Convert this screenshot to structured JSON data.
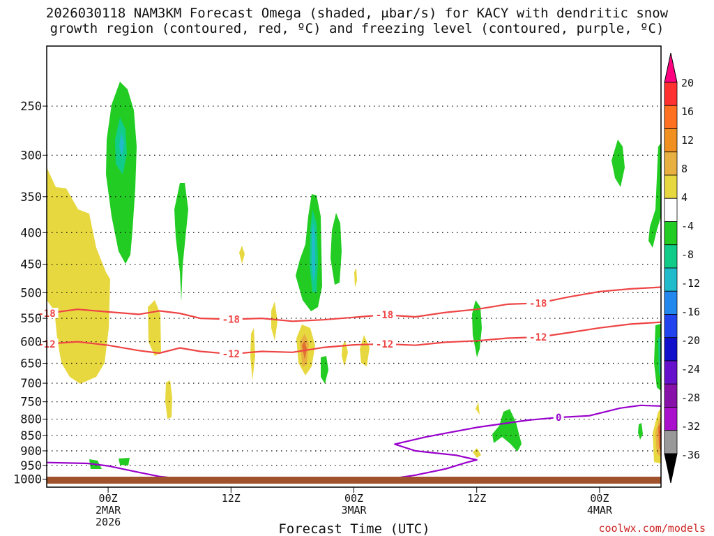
{
  "title_line1": "2026030118 NAM3KM Forecast Omega (shaded, μbar/s) for KACY with dendritic snow",
  "title_line2": "growth region (contoured, red, ºC) and freezing level (contoured, purple, ºC)",
  "credit": "coolwx.com/models",
  "colors": {
    "frame": "#000000",
    "temp_contour": "#ee4444",
    "freezing_contour": "#9900cc",
    "ground": "#a0522d",
    "rising_light": "#22cc22",
    "rising_mid": "#11cc88",
    "rising_strong": "#22bbcc",
    "sinking_light": "#e8d840",
    "sinking_mid": "#e8b040",
    "sinking_strong": "#e07030"
  },
  "chart_data": {
    "type": "heatmap",
    "title": "2026030118 NAM3KM Forecast Omega (shaded, μbar/s) for KACY with dendritic snow growth region (contoured, red, ºC) and freezing level (contoured, purple, ºC)",
    "xlabel": "Forecast Time (UTC)",
    "ylabel": "",
    "y_scale": "log-pressure",
    "y_ticks": [
      250,
      300,
      350,
      400,
      450,
      500,
      550,
      600,
      650,
      700,
      750,
      800,
      850,
      900,
      950,
      1000
    ],
    "ylim_hpa": [
      200,
      1030
    ],
    "xlim_hours": [
      -6,
      54
    ],
    "x_ticks": [
      {
        "hour": 0,
        "lines": [
          "00Z",
          "2MAR",
          "2026"
        ]
      },
      {
        "hour": 12,
        "lines": [
          "12Z"
        ]
      },
      {
        "hour": 24,
        "lines": [
          "00Z",
          "3MAR"
        ]
      },
      {
        "hour": 36,
        "lines": [
          "12Z"
        ]
      },
      {
        "hour": 48,
        "lines": [
          "00Z",
          "4MAR"
        ]
      }
    ],
    "grid": "dotted horizontal",
    "colorbar": {
      "labels": [
        20,
        16,
        12,
        8,
        4,
        -4,
        -8,
        -12,
        -16,
        -20,
        -24,
        -28,
        -32,
        -36
      ],
      "colors": [
        "#ff0080",
        "#ff3030",
        "#ff7020",
        "#f09020",
        "#e8b040",
        "#e8d840",
        "#ffffff",
        "#22cc22",
        "#11cc88",
        "#22bbcc",
        "#2288ee",
        "#2244ee",
        "#1111cc",
        "#6611cc",
        "#8811aa",
        "#aa11cc",
        "#999999",
        "#000000"
      ]
    },
    "contours": [
      {
        "label": "-18",
        "units": "ºC",
        "color": "red",
        "points": [
          [
            -6,
            540
          ],
          [
            -3,
            532
          ],
          [
            0,
            537
          ],
          [
            3,
            542
          ],
          [
            5,
            535
          ],
          [
            7,
            540
          ],
          [
            9,
            550
          ],
          [
            12,
            552
          ],
          [
            15,
            550
          ],
          [
            18,
            556
          ],
          [
            21,
            553
          ],
          [
            24,
            548
          ],
          [
            27,
            543
          ],
          [
            30,
            547
          ],
          [
            33,
            538
          ],
          [
            36,
            532
          ],
          [
            39,
            522
          ],
          [
            42,
            520
          ],
          [
            45,
            508
          ],
          [
            48,
            498
          ],
          [
            51,
            493
          ],
          [
            54,
            490
          ]
        ]
      },
      {
        "label": "-12",
        "units": "ºC",
        "color": "red",
        "points": [
          [
            -6,
            605
          ],
          [
            -3,
            600
          ],
          [
            0,
            608
          ],
          [
            3,
            620
          ],
          [
            5,
            626
          ],
          [
            7,
            614
          ],
          [
            9,
            622
          ],
          [
            12,
            628
          ],
          [
            15,
            622
          ],
          [
            18,
            624
          ],
          [
            21,
            613
          ],
          [
            24,
            607
          ],
          [
            27,
            605
          ],
          [
            30,
            608
          ],
          [
            33,
            601
          ],
          [
            36,
            598
          ],
          [
            39,
            592
          ],
          [
            42,
            590
          ],
          [
            45,
            580
          ],
          [
            48,
            570
          ],
          [
            51,
            562
          ],
          [
            54,
            558
          ]
        ]
      },
      {
        "label": "0",
        "units": "ºC",
        "color": "purple",
        "points": [
          [
            -6,
            940
          ],
          [
            -2,
            943
          ],
          [
            0,
            952
          ],
          [
            3,
            975
          ],
          [
            5,
            990
          ],
          [
            10,
            1010
          ],
          [
            16,
            1008
          ],
          [
            22,
            1010
          ],
          [
            27,
            1002
          ],
          [
            30,
            985
          ],
          [
            33,
            962
          ],
          [
            35,
            940
          ],
          [
            36,
            931
          ],
          [
            34,
            915
          ],
          [
            30,
            900
          ],
          [
            28,
            878
          ],
          [
            31,
            855
          ],
          [
            36,
            825
          ],
          [
            41,
            803
          ],
          [
            44,
            795
          ],
          [
            47,
            790
          ],
          [
            50,
            768
          ],
          [
            52,
            760
          ],
          [
            54,
            762
          ]
        ]
      }
    ],
    "omega_regions_ubar_s": [
      {
        "hour_center": 0.6,
        "p_top": 225,
        "p_bottom": 455,
        "min_value": -12
      },
      {
        "hour_center": 6.8,
        "p_top": 340,
        "p_bottom": 530,
        "min_value": -4
      },
      {
        "hour_center": 19.6,
        "p_top": 355,
        "p_bottom": 555,
        "min_value": -16
      },
      {
        "hour_center": 21.8,
        "p_top": 385,
        "p_bottom": 515,
        "min_value": -4
      },
      {
        "hour_center": 36.0,
        "p_top": 525,
        "p_bottom": 650,
        "min_value": -4
      },
      {
        "hour_center": 50.0,
        "p_top": 295,
        "p_bottom": 350,
        "min_value": -4
      },
      {
        "hour_center": 38.8,
        "p_top": 790,
        "p_bottom": 905,
        "min_value": -4
      },
      {
        "hour_center": -2.5,
        "p_top": 320,
        "p_bottom": 720,
        "max_value": 4
      },
      {
        "hour_center": 18.5,
        "p_top": 590,
        "p_bottom": 690,
        "max_value": 12
      },
      {
        "hour_center": 53.5,
        "p_top": 790,
        "p_bottom": 960,
        "max_value": 20
      }
    ],
    "ground_level_hpa": 1018
  }
}
